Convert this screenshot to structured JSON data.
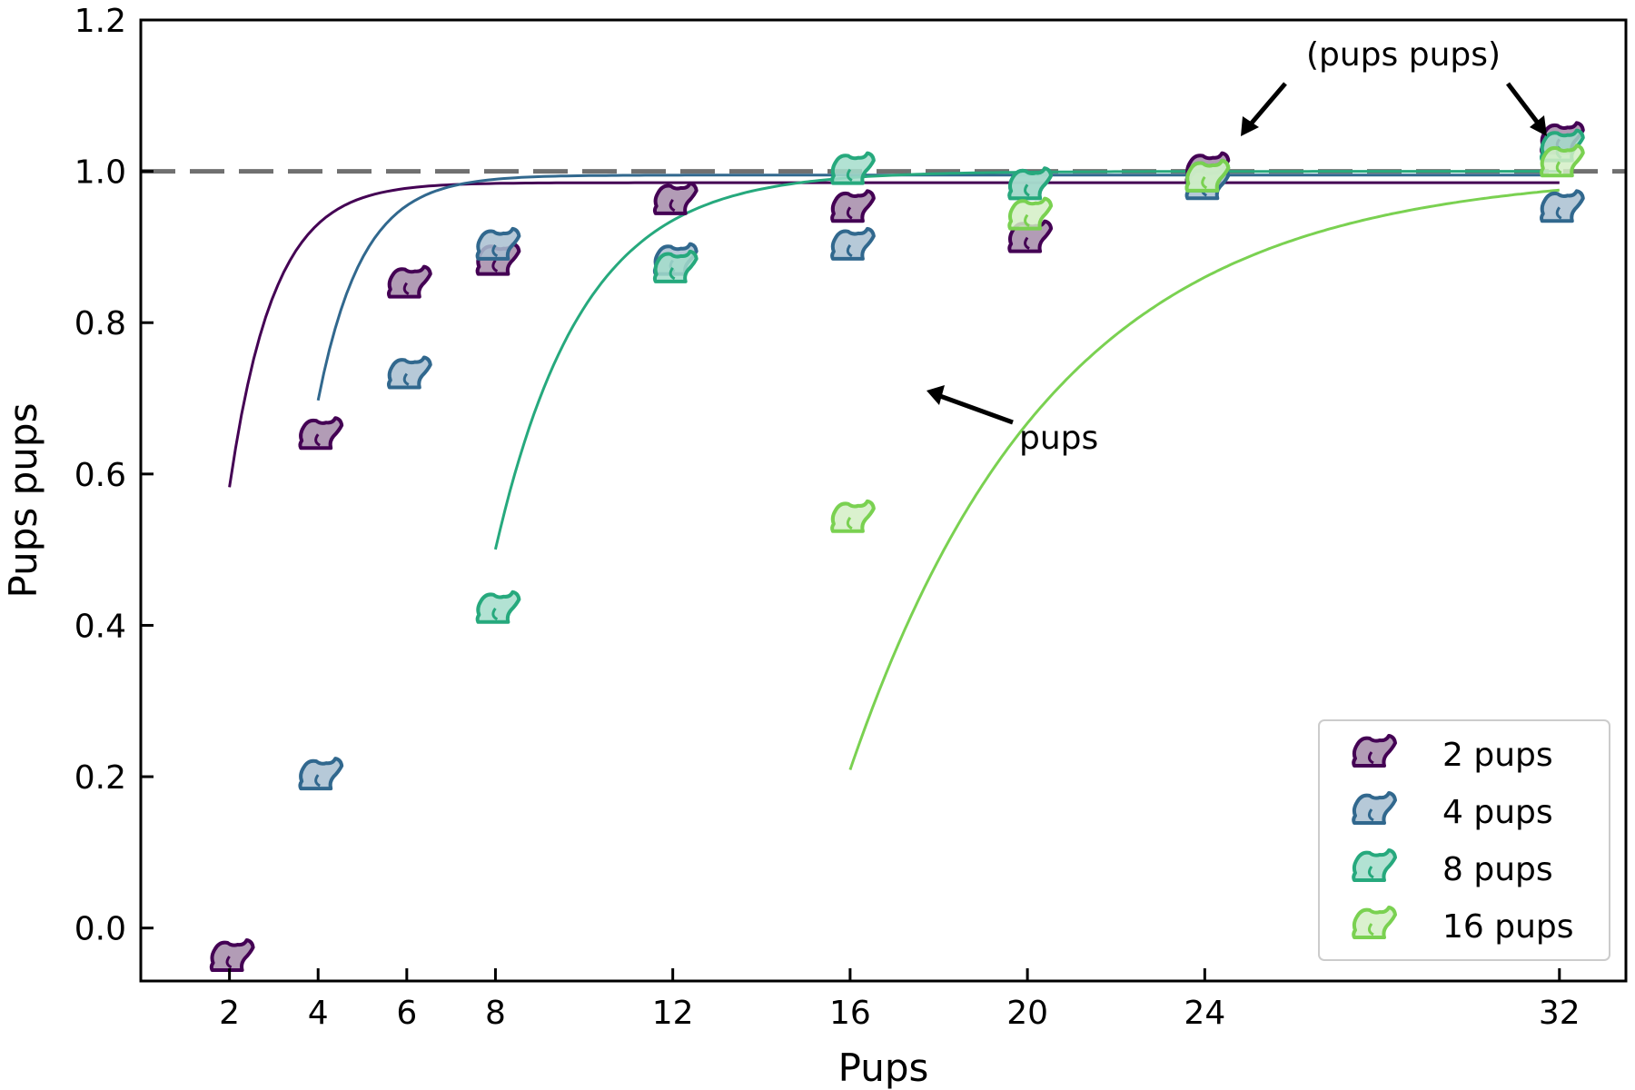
{
  "chart_data": {
    "type": "scatter",
    "title": "",
    "xlabel": "Pups",
    "ylabel": "Pups pups",
    "xlim": [
      0,
      33.5
    ],
    "ylim": [
      -0.07,
      1.2
    ],
    "xticks": [
      2,
      4,
      6,
      8,
      12,
      16,
      20,
      24,
      32
    ],
    "yticks": [
      0.0,
      0.2,
      0.4,
      0.6,
      0.8,
      1.0,
      1.2
    ],
    "ytick_labels": [
      "0.0",
      "0.2",
      "0.4",
      "0.6",
      "0.8",
      "1.0",
      "1.2"
    ],
    "reference_line": {
      "y": 1.0,
      "style": "dashed",
      "color": "#707070"
    },
    "marker": "pup-silhouette",
    "legend_position": "bottom-right",
    "series": [
      {
        "name": "2 pups",
        "color": "#440154",
        "fill": "#A58BA9",
        "points": [
          [
            2,
            -0.04
          ],
          [
            4,
            0.65
          ],
          [
            6,
            0.85
          ],
          [
            8,
            0.88
          ],
          [
            12,
            0.96
          ],
          [
            16,
            0.95
          ],
          [
            20,
            0.91
          ],
          [
            24,
            1.0
          ],
          [
            32,
            1.04
          ]
        ],
        "fit": {
          "start": 2,
          "end": 32,
          "a": 0.985,
          "b": 1.6,
          "c": 0.62
        }
      },
      {
        "name": "4 pups",
        "color": "#31688E",
        "fill": "#A9C0D1",
        "points": [
          [
            4,
            0.2
          ],
          [
            6,
            0.73
          ],
          [
            8,
            0.9
          ],
          [
            12,
            0.88
          ],
          [
            16,
            0.9
          ],
          [
            20,
            0.98
          ],
          [
            24,
            0.98
          ],
          [
            32,
            0.95
          ]
        ],
        "fit": {
          "start": 4,
          "end": 32,
          "a": 0.995,
          "b": 2.2,
          "c": 2.0
        }
      },
      {
        "name": "8 pups",
        "color": "#26A97D",
        "fill": "#A5DDCB",
        "points": [
          [
            8,
            0.42
          ],
          [
            12,
            0.87
          ],
          [
            16,
            1.0
          ],
          [
            20,
            0.98
          ],
          [
            24,
            0.99
          ],
          [
            32,
            1.03
          ]
        ],
        "fit": {
          "start": 8,
          "end": 32,
          "a": 1.0,
          "b": 1.7,
          "c": 5.6
        }
      },
      {
        "name": "16 pups",
        "color": "#7AD151",
        "fill": "#D4EFC5",
        "points": [
          [
            16,
            0.54
          ],
          [
            20,
            0.94
          ],
          [
            24,
            0.99
          ],
          [
            32,
            1.01
          ]
        ],
        "fit": {
          "start": 16,
          "end": 32,
          "a": 1.0,
          "b": 1.45,
          "c": 13.2
        }
      }
    ],
    "annotations": [
      {
        "text": "(pups pups)",
        "position": "top-right"
      },
      {
        "text": "pups",
        "position": "middle"
      }
    ]
  }
}
